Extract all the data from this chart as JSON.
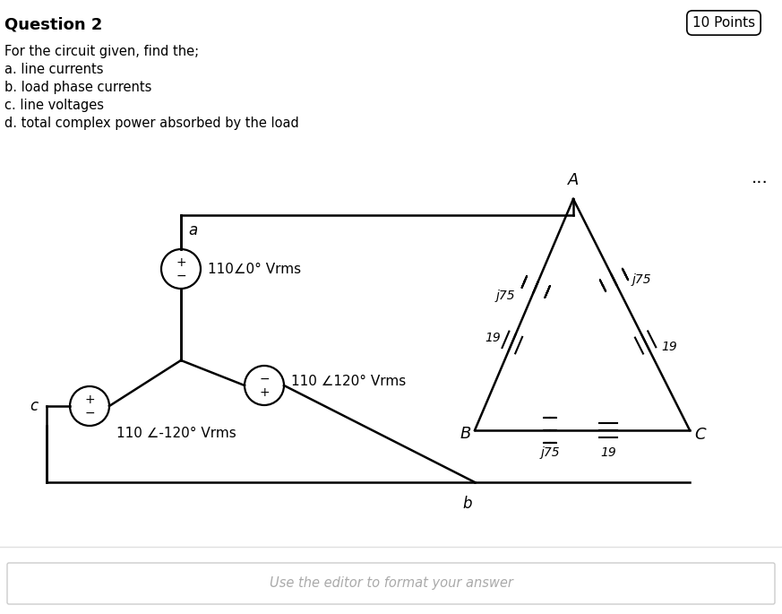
{
  "title": "Question 2",
  "points_label": "10 Points",
  "problem_text": [
    "For the circuit given, find the;",
    "a. line currents",
    "b. load phase currents",
    "c. line voltages",
    "d. total complex power absorbed by the load"
  ],
  "answer_placeholder": "Use the editor to format your answer",
  "bg_color": "#ffffff",
  "text_color": "#000000",
  "circuit": {
    "source_a_label": "110∠0° Vrms",
    "source_b_label": "110 ∠120° Vrms",
    "source_c_label": "110 ∠-120° Vrms",
    "node_a": "A",
    "node_b": "B",
    "node_c": "C",
    "node_a_wire": "a",
    "node_b_wire": "b",
    "node_c_wire": "c",
    "load_AB_r": "19",
    "load_AB_x": "j75",
    "load_BC_r": "19",
    "load_BC_x": "j75",
    "load_CA_r": "19",
    "load_CA_x": "j75"
  }
}
